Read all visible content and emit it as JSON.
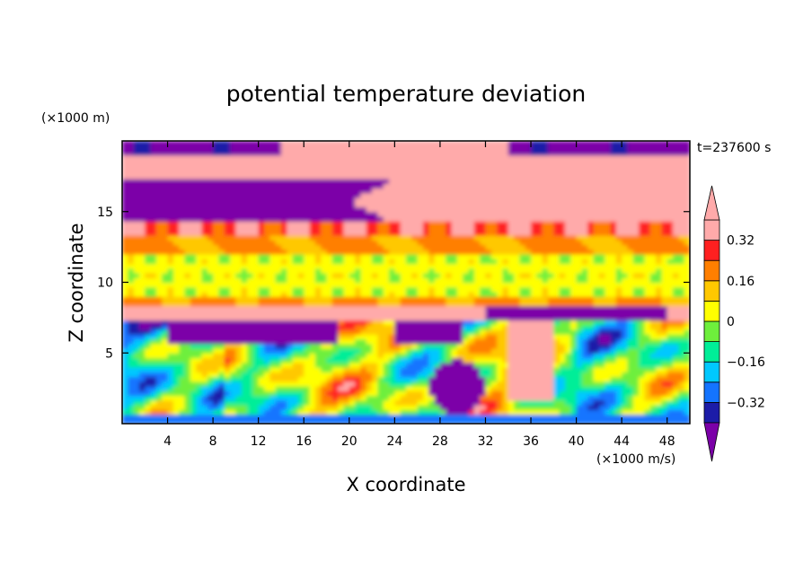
{
  "chart_data": {
    "type": "heatmap",
    "title": "potential temperature deviation",
    "xlabel": "X coordinate",
    "ylabel": "Z coordinate",
    "x_unit": "(×1000 m/s)",
    "y_unit": "(×1000 m)",
    "time_label": "t=237600 s",
    "xlim": [
      0,
      50
    ],
    "ylim": [
      0,
      20
    ],
    "x_ticks": [
      4,
      8,
      12,
      16,
      20,
      24,
      28,
      32,
      36,
      40,
      44,
      48
    ],
    "y_ticks": [
      5,
      10,
      15
    ],
    "colorbar": {
      "levels": [
        -0.4,
        -0.32,
        -0.24,
        -0.16,
        -0.08,
        0,
        0.08,
        0.16,
        0.24,
        0.32,
        0.4
      ],
      "labels": [
        "0.32",
        "0.16",
        "0",
        "−0.16",
        "−0.32"
      ],
      "label_values": [
        0.32,
        0.16,
        0,
        -0.16,
        -0.32
      ],
      "colors": [
        "#7b00a8",
        "#1c1ca8",
        "#1474ff",
        "#00c8ff",
        "#00ee98",
        "#6eef3c",
        "#ffff00",
        "#ffc800",
        "#ff7f00",
        "#ff2020",
        "#ffaaaa"
      ],
      "under_color": "#7b00a8",
      "over_color": "#ffaaaa"
    }
  }
}
